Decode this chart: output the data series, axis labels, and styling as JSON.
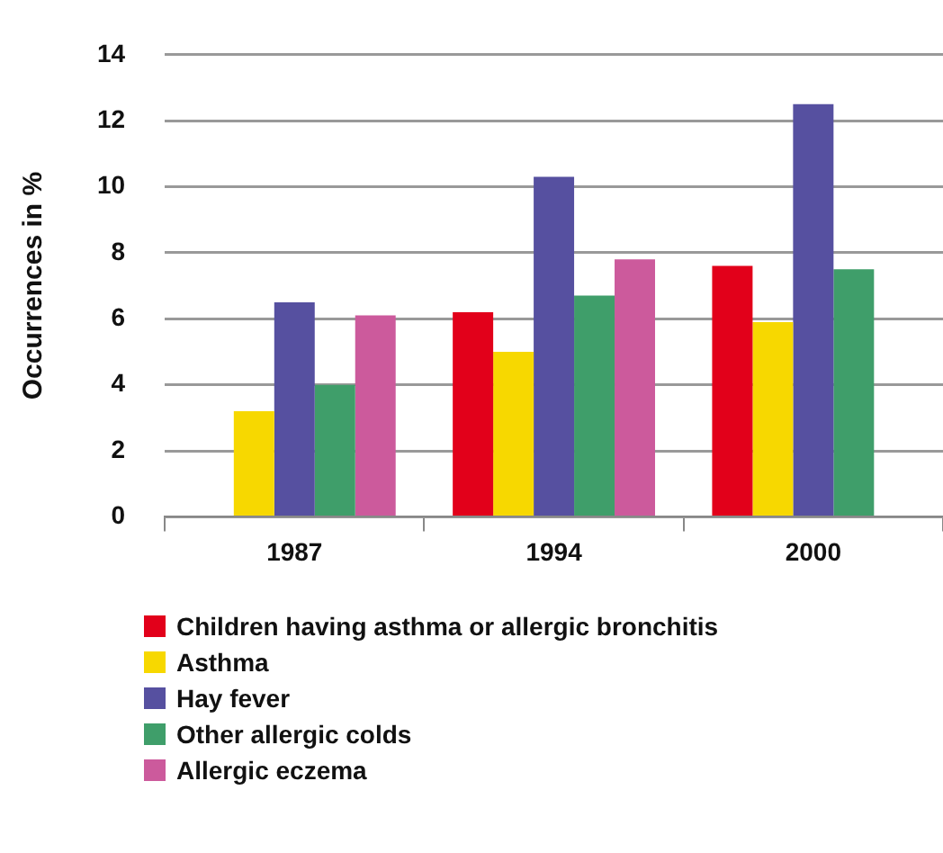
{
  "chart_data": {
    "type": "bar",
    "ylabel": "Occurrences in %",
    "categories": [
      "1987",
      "1994",
      "2000"
    ],
    "series": [
      {
        "name": "Children having asthma or allergic bronchitis",
        "color": "#e2001a",
        "values": [
          null,
          6.2,
          7.6
        ]
      },
      {
        "name": "Asthma",
        "color": "#f7d800",
        "values": [
          3.2,
          5.0,
          5.9
        ]
      },
      {
        "name": "Hay fever",
        "color": "#5650a0",
        "values": [
          6.5,
          10.3,
          12.5
        ]
      },
      {
        "name": "Other allergic colds",
        "color": "#3f9e6a",
        "values": [
          4.0,
          6.7,
          7.5
        ]
      },
      {
        "name": "Allergic eczema",
        "color": "#cc5a9c",
        "values": [
          6.1,
          7.8,
          null
        ]
      }
    ],
    "ylim": [
      0,
      14
    ],
    "yticks": [
      0,
      2,
      4,
      6,
      8,
      10,
      12,
      14
    ],
    "grid": "y",
    "legend": "bottom"
  }
}
